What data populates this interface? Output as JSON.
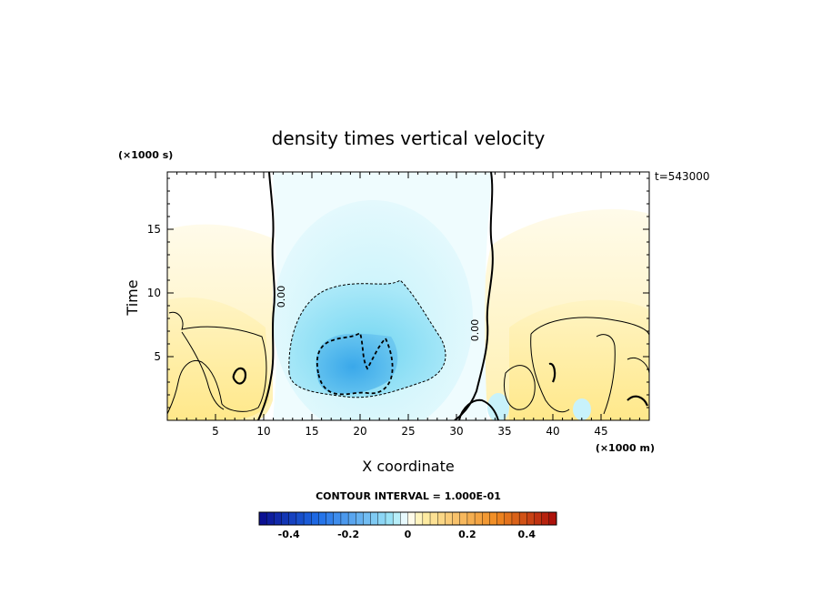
{
  "chart_data": {
    "type": "heatmap",
    "title": "density times vertical velocity",
    "xlabel": "X coordinate",
    "ylabel": "Time",
    "x_unit": "(×1000 m)",
    "y_unit": "(×1000 s)",
    "time_stamp": "t=543000",
    "xlim": [
      0,
      50
    ],
    "ylim": [
      0,
      19.5
    ],
    "x_ticks": [
      5,
      10,
      15,
      20,
      25,
      30,
      35,
      40,
      45
    ],
    "x_tick_labels": [
      "5",
      "10",
      "15",
      "20",
      "25",
      "30",
      "35",
      "40",
      "45"
    ],
    "y_ticks": [
      5,
      10,
      15
    ],
    "y_tick_labels": [
      "5",
      "10",
      "15"
    ],
    "contour_label": "0.00",
    "contour_interval_text": "CONTOUR INTERVAL = 1.000E-01",
    "colorbar": {
      "range": [
        -0.5,
        0.5
      ],
      "ticks": [
        -0.4,
        -0.2,
        0,
        0.2,
        0.4
      ],
      "tick_labels": [
        "-0.4",
        "-0.2",
        "0",
        "0.2",
        "0.4"
      ],
      "n_steps": 40
    },
    "colors": {
      "min": "#0a0a8c",
      "low": "#1f6ee8",
      "mid_low": "#9fe8f7",
      "zero": "#ffffff",
      "mid_high": "#fff0a8",
      "high": "#f08a20",
      "max": "#a80a0a"
    }
  }
}
